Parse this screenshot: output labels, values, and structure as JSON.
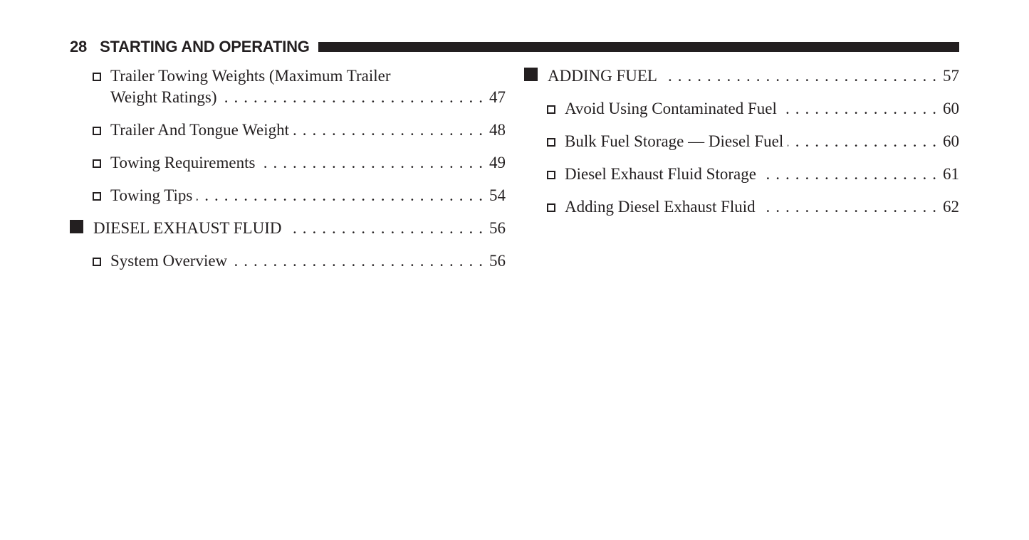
{
  "header": {
    "page_number": "28",
    "chapter_title": "STARTING AND OPERATING"
  },
  "toc": {
    "left_column": [
      {
        "level": 2,
        "label_lines": [
          "Trailer Towing Weights (Maximum Trailer",
          "Weight Ratings)"
        ],
        "page": "47"
      },
      {
        "level": 2,
        "label_lines": [
          "Trailer And Tongue Weight"
        ],
        "page": "48"
      },
      {
        "level": 2,
        "label_lines": [
          "Towing Requirements"
        ],
        "page": "49"
      },
      {
        "level": 2,
        "label_lines": [
          "Towing Tips"
        ],
        "page": "54"
      },
      {
        "level": 1,
        "label_lines": [
          "DIESEL EXHAUST FLUID"
        ],
        "page": "56"
      },
      {
        "level": 2,
        "label_lines": [
          "System Overview"
        ],
        "page": "56"
      }
    ],
    "right_column": [
      {
        "level": 1,
        "label_lines": [
          "ADDING FUEL"
        ],
        "page": "57"
      },
      {
        "level": 2,
        "label_lines": [
          "Avoid Using Contaminated Fuel"
        ],
        "page": "60"
      },
      {
        "level": 2,
        "label_lines": [
          "Bulk Fuel Storage — Diesel Fuel"
        ],
        "page": "60"
      },
      {
        "level": 2,
        "label_lines": [
          "Diesel Exhaust Fluid Storage"
        ],
        "page": "61"
      },
      {
        "level": 2,
        "label_lines": [
          "Adding Diesel Exhaust Fluid"
        ],
        "page": "62"
      }
    ]
  },
  "colors": {
    "ink": "#231f20",
    "paper": "#ffffff"
  }
}
